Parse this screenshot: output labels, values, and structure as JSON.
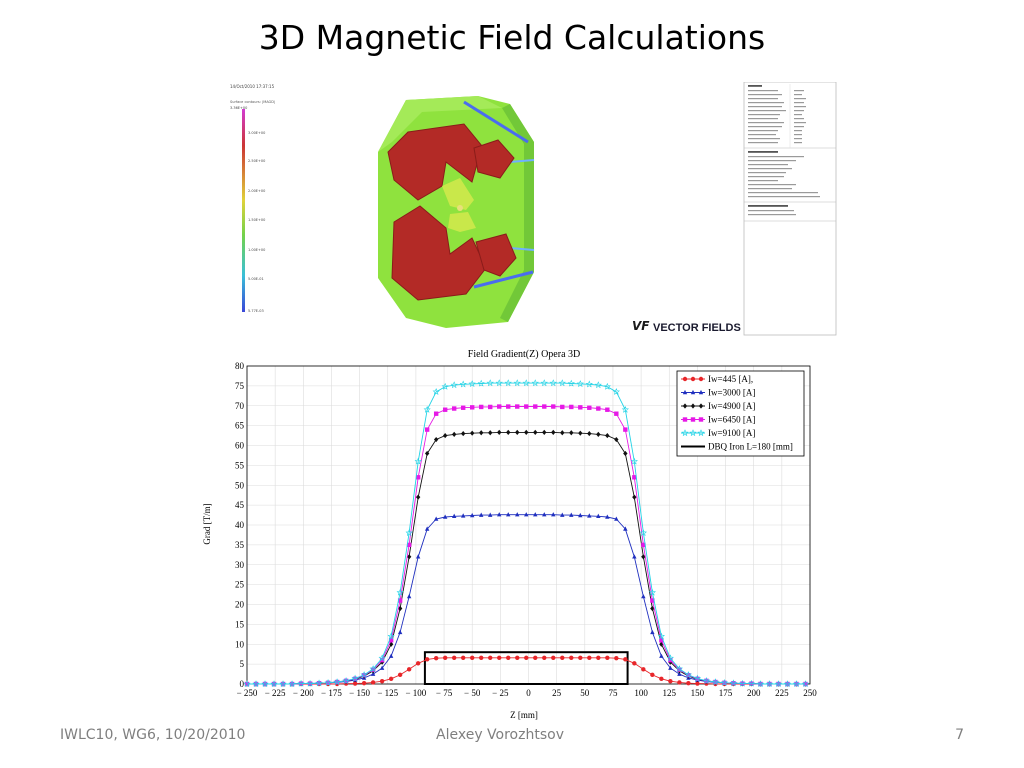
{
  "slide": {
    "title": "3D Magnetic Field Calculations",
    "footer_left": "IWLC10, WG6, 10/20/2010",
    "footer_center": "Alexey Vorozhtsov",
    "footer_right": "7"
  },
  "render": {
    "logo_text": "VECTOR FIELDS",
    "logo_mark": "VF"
  },
  "chart_data": {
    "type": "line",
    "title": "Field Gradient(Z) Opera 3D",
    "xlabel": "Z [mm]",
    "ylabel": "Grad [T/m]",
    "xlim": [
      -250,
      250
    ],
    "ylim": [
      0,
      80
    ],
    "xticks": [
      -250,
      -225,
      -200,
      -175,
      -150,
      -125,
      -100,
      -75,
      -50,
      -25,
      0,
      25,
      50,
      75,
      100,
      125,
      150,
      175,
      200,
      225,
      250
    ],
    "xtick_labels": [
      "− 250",
      "− 225",
      "− 200",
      "− 175",
      "− 150",
      "− 125",
      "− 100",
      "− 75",
      "− 50",
      "− 25",
      "0",
      "25",
      "50",
      "75",
      "100",
      "125",
      "150",
      "175",
      "200",
      "225",
      "250"
    ],
    "yticks": [
      0,
      5,
      10,
      15,
      20,
      25,
      30,
      35,
      40,
      45,
      50,
      55,
      60,
      65,
      70,
      75,
      80
    ],
    "grid": true,
    "legend_position": "top-right",
    "x": [
      -250,
      -242,
      -234,
      -226,
      -218,
      -210,
      -202,
      -194,
      -186,
      -178,
      -170,
      -162,
      -154,
      -146,
      -138,
      -130,
      -122,
      -114,
      -106,
      -98,
      -90,
      -82,
      -74,
      -66,
      -58,
      -50,
      -42,
      -34,
      -26,
      -18,
      -10,
      -2,
      6,
      14,
      22,
      30,
      38,
      46,
      54,
      62,
      70,
      78,
      86,
      94,
      102,
      110,
      118,
      126,
      134,
      142,
      150,
      158,
      166,
      174,
      182,
      190,
      198,
      206,
      214,
      222,
      230,
      238,
      246
    ],
    "series": [
      {
        "name": "Iw=445 [A],",
        "color": "#e8262a",
        "marker": "circle",
        "values": [
          0.0,
          0.0,
          0.0,
          0.0,
          0.0,
          0.0,
          0.0,
          0.0,
          0.0,
          0.0,
          0.0,
          0.1,
          0.1,
          0.2,
          0.4,
          0.7,
          1.3,
          2.3,
          3.7,
          5.2,
          6.2,
          6.5,
          6.6,
          6.6,
          6.6,
          6.6,
          6.6,
          6.6,
          6.6,
          6.6,
          6.6,
          6.6,
          6.6,
          6.6,
          6.6,
          6.6,
          6.6,
          6.6,
          6.6,
          6.6,
          6.6,
          6.5,
          6.2,
          5.2,
          3.7,
          2.3,
          1.3,
          0.7,
          0.4,
          0.2,
          0.1,
          0.1,
          0.0,
          0.0,
          0.0,
          0.0,
          0.0,
          0.0,
          0.0,
          0.0,
          0.0,
          0.0,
          0.0
        ]
      },
      {
        "name": "Iw=3000 [A]",
        "color": "#1f2fbf",
        "marker": "triangle",
        "values": [
          0.0,
          0.0,
          0.0,
          0.0,
          0.0,
          0.0,
          0.1,
          0.1,
          0.2,
          0.3,
          0.4,
          0.6,
          1.0,
          1.5,
          2.5,
          4.0,
          7.0,
          13.0,
          22.0,
          32.0,
          39.0,
          41.5,
          42.0,
          42.2,
          42.3,
          42.4,
          42.5,
          42.5,
          42.6,
          42.6,
          42.6,
          42.6,
          42.6,
          42.6,
          42.6,
          42.5,
          42.5,
          42.4,
          42.3,
          42.2,
          42.0,
          41.5,
          39.0,
          32.0,
          22.0,
          13.0,
          7.0,
          4.0,
          2.5,
          1.5,
          1.0,
          0.6,
          0.4,
          0.3,
          0.2,
          0.1,
          0.1,
          0.0,
          0.0,
          0.0,
          0.0,
          0.0,
          0.0
        ]
      },
      {
        "name": "Iw=4900 [A]",
        "color": "#111111",
        "marker": "diamond",
        "values": [
          0.0,
          0.0,
          0.0,
          0.0,
          0.0,
          0.0,
          0.1,
          0.1,
          0.2,
          0.3,
          0.5,
          0.8,
          1.2,
          2.0,
          3.3,
          5.5,
          10.0,
          19.0,
          32.0,
          47.0,
          58.0,
          61.5,
          62.5,
          62.8,
          63.0,
          63.1,
          63.2,
          63.2,
          63.3,
          63.3,
          63.3,
          63.3,
          63.3,
          63.3,
          63.3,
          63.2,
          63.2,
          63.1,
          63.0,
          62.8,
          62.5,
          61.5,
          58.0,
          47.0,
          32.0,
          19.0,
          10.0,
          5.5,
          3.3,
          2.0,
          1.2,
          0.8,
          0.5,
          0.3,
          0.2,
          0.1,
          0.1,
          0.0,
          0.0,
          0.0,
          0.0,
          0.0,
          0.0
        ]
      },
      {
        "name": "Iw=6450 [A]",
        "color": "#e619e6",
        "marker": "square",
        "values": [
          0.0,
          0.0,
          0.0,
          0.0,
          0.0,
          0.0,
          0.1,
          0.1,
          0.2,
          0.3,
          0.5,
          0.8,
          1.3,
          2.2,
          3.6,
          6.0,
          11.0,
          21.0,
          35.0,
          52.0,
          64.0,
          68.0,
          69.0,
          69.3,
          69.5,
          69.6,
          69.7,
          69.7,
          69.8,
          69.8,
          69.8,
          69.8,
          69.8,
          69.8,
          69.8,
          69.7,
          69.7,
          69.6,
          69.5,
          69.3,
          69.0,
          68.0,
          64.0,
          52.0,
          35.0,
          21.0,
          11.0,
          6.0,
          3.6,
          2.2,
          1.3,
          0.8,
          0.5,
          0.3,
          0.2,
          0.1,
          0.1,
          0.0,
          0.0,
          0.0,
          0.0,
          0.0,
          0.0
        ]
      },
      {
        "name": "Iw=9100 [A]",
        "color": "#22d3e6",
        "marker": "star",
        "values": [
          0.0,
          0.0,
          0.0,
          0.0,
          0.0,
          0.0,
          0.1,
          0.1,
          0.2,
          0.3,
          0.5,
          0.8,
          1.4,
          2.3,
          3.8,
          6.5,
          12.0,
          23.0,
          38.0,
          56.0,
          69.0,
          73.5,
          74.8,
          75.2,
          75.4,
          75.5,
          75.6,
          75.7,
          75.7,
          75.7,
          75.7,
          75.7,
          75.7,
          75.7,
          75.7,
          75.7,
          75.6,
          75.5,
          75.4,
          75.2,
          74.8,
          73.5,
          69.0,
          56.0,
          38.0,
          23.0,
          12.0,
          6.5,
          3.8,
          2.3,
          1.4,
          0.8,
          0.5,
          0.3,
          0.2,
          0.1,
          0.1,
          0.0,
          0.0,
          0.0,
          0.0,
          0.0,
          0.0
        ]
      }
    ],
    "iron": {
      "name": "DBQ Iron L=180 [mm]",
      "color": "#000000",
      "z": [
        -92,
        88
      ],
      "height": 8
    }
  }
}
